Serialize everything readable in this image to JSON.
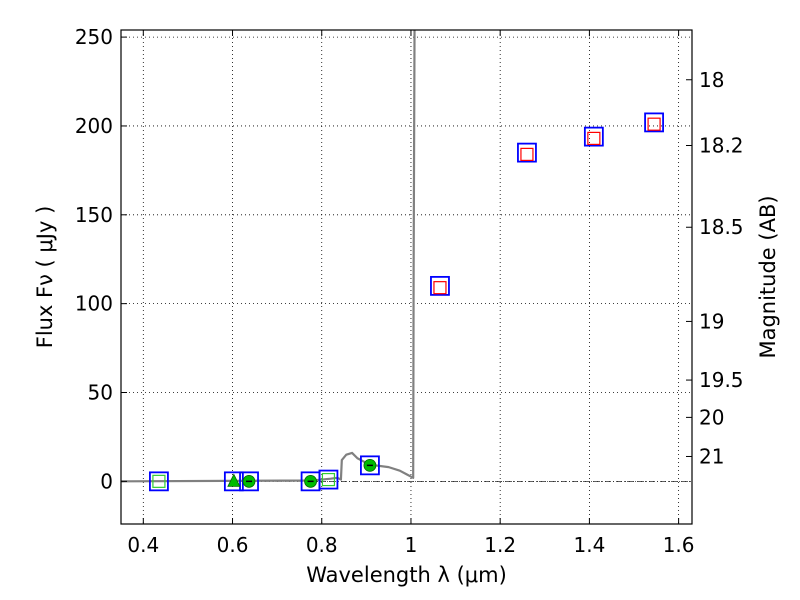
{
  "chart_data": {
    "type": "scatter",
    "title": "",
    "xlabel": "Wavelength  λ (μm)",
    "ylabel": "Flux  Fν  ( μJy )",
    "ylabel_right": "Magnitude (AB)",
    "xlim": [
      0.35,
      1.63
    ],
    "ylim": [
      -24,
      254
    ],
    "grid": true,
    "x_ticks": [
      "0.4",
      "0.6",
      "0.8",
      "1",
      "1.2",
      "1.4",
      "1.6"
    ],
    "x_tick_values": [
      0.4,
      0.6,
      0.8,
      1.0,
      1.2,
      1.4,
      1.6
    ],
    "y_ticks": [
      "0",
      "50",
      "100",
      "150",
      "200",
      "250"
    ],
    "y_tick_values": [
      0,
      50,
      100,
      150,
      200,
      250
    ],
    "right_ticks": [
      {
        "label": "18",
        "flux": 226
      },
      {
        "label": "18.2",
        "flux": 189
      },
      {
        "label": "18.5",
        "flux": 143
      },
      {
        "label": "19",
        "flux": 90
      },
      {
        "label": "19.5",
        "flux": 57
      },
      {
        "label": "20",
        "flux": 36
      },
      {
        "label": "21",
        "flux": 14
      }
    ],
    "series": [
      {
        "name": "model spectrum",
        "style": "line",
        "color": "#808080",
        "x": [
          0.35,
          0.78,
          0.8,
          0.82,
          0.835,
          0.843,
          0.845,
          0.855,
          0.868,
          0.88,
          0.895,
          0.92,
          0.95,
          0.975,
          0.99,
          1.005,
          1.006,
          1.008,
          1.009
        ],
        "y": [
          0,
          0.5,
          1,
          1.5,
          2,
          1,
          12,
          15,
          16,
          13,
          11,
          9,
          8,
          6,
          4,
          2,
          120,
          254,
          254
        ]
      },
      {
        "name": "observed photometry",
        "style": "open-square",
        "color": "#0000ff",
        "x": [
          0.435,
          0.603,
          0.637,
          0.775,
          0.815,
          0.908,
          1.065,
          1.26,
          1.41,
          1.545
        ],
        "y": [
          0,
          0,
          0,
          0,
          1,
          9,
          110,
          185,
          194,
          202
        ]
      },
      {
        "name": "model photometry",
        "style": "open-square-small",
        "color": "#ff0000",
        "x": [
          1.065,
          1.26,
          1.41,
          1.545
        ],
        "y": [
          109,
          184,
          193,
          201
        ]
      },
      {
        "name": "low-flux model points",
        "style": "open-square-small",
        "color": "#32cd32",
        "x": [
          0.435,
          0.815
        ],
        "y": [
          0,
          1
        ]
      },
      {
        "name": "detections",
        "style": "filled-circle",
        "color": "#00bb00",
        "x": [
          0.637,
          0.775,
          0.908
        ],
        "y": [
          0,
          0,
          9
        ]
      },
      {
        "name": "upper limit",
        "style": "filled-triangle",
        "color": "#00bb00",
        "x": [
          0.603
        ],
        "y": [
          0
        ]
      }
    ]
  }
}
